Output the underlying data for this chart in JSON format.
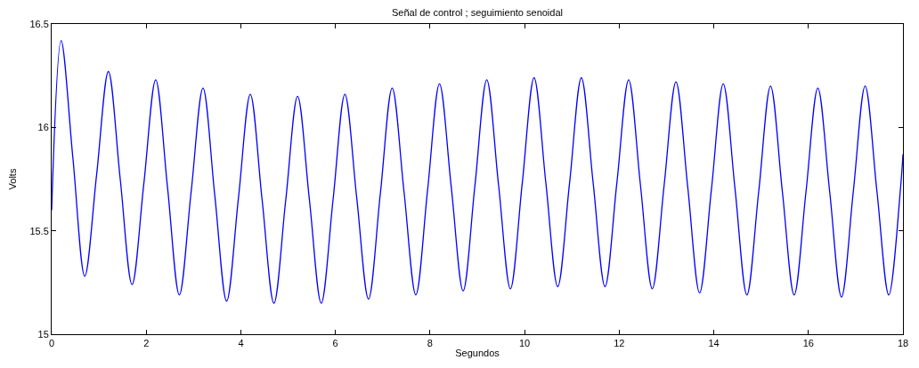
{
  "chart_data": {
    "type": "line",
    "title": "Señal de control ; seguimiento senoidal",
    "xlabel": "Segundos",
    "ylabel": "Volts",
    "x": [
      0,
      0.2,
      0.45,
      0.7,
      0.95,
      1.2,
      1.45,
      1.7,
      1.95,
      2.2,
      2.45,
      2.7,
      2.95,
      3.2,
      3.45,
      3.7,
      3.95,
      4.2,
      4.45,
      4.7,
      4.95,
      5.2,
      5.45,
      5.7,
      5.95,
      6.2,
      6.45,
      6.7,
      6.95,
      7.2,
      7.45,
      7.7,
      7.95,
      8.2,
      8.45,
      8.7,
      8.95,
      9.2,
      9.45,
      9.7,
      9.95,
      10.2,
      10.45,
      10.7,
      10.95,
      11.2,
      11.45,
      11.7,
      11.95,
      12.2,
      12.45,
      12.7,
      12.95,
      13.2,
      13.45,
      13.7,
      13.95,
      14.2,
      14.45,
      14.7,
      14.95,
      15.2,
      15.45,
      15.7,
      15.95,
      16.2,
      16.45,
      16.7,
      16.95,
      17.2,
      17.45,
      17.7,
      17.95,
      18
    ],
    "series": [
      {
        "color": "#0000ff",
        "values": [
          15.6,
          16.42,
          15.85,
          15.28,
          15.77,
          16.27,
          15.75,
          15.24,
          15.73,
          16.23,
          15.71,
          15.19,
          15.69,
          16.19,
          15.67,
          15.16,
          15.66,
          16.16,
          15.65,
          15.15,
          15.65,
          16.15,
          15.65,
          15.15,
          15.65,
          16.16,
          15.66,
          15.17,
          15.68,
          16.19,
          15.69,
          15.19,
          15.7,
          16.21,
          15.71,
          15.21,
          15.72,
          16.23,
          15.72,
          15.22,
          15.73,
          16.24,
          15.73,
          15.23,
          15.73,
          16.24,
          15.73,
          15.23,
          15.73,
          16.23,
          15.72,
          15.22,
          15.72,
          16.22,
          15.71,
          15.2,
          15.7,
          16.21,
          15.7,
          15.19,
          15.69,
          16.2,
          15.69,
          15.19,
          15.69,
          16.19,
          15.69,
          15.18,
          15.69,
          16.2,
          15.69,
          15.19,
          15.71,
          15.87
        ]
      }
    ],
    "xlim": [
      0,
      18
    ],
    "xticks": [
      0,
      2,
      4,
      6,
      8,
      10,
      12,
      14,
      16,
      18
    ],
    "ylim": [
      15,
      16.5
    ],
    "yticks": [
      15,
      15.5,
      16,
      16.5
    ],
    "marker": "none",
    "line_style": "solid"
  }
}
